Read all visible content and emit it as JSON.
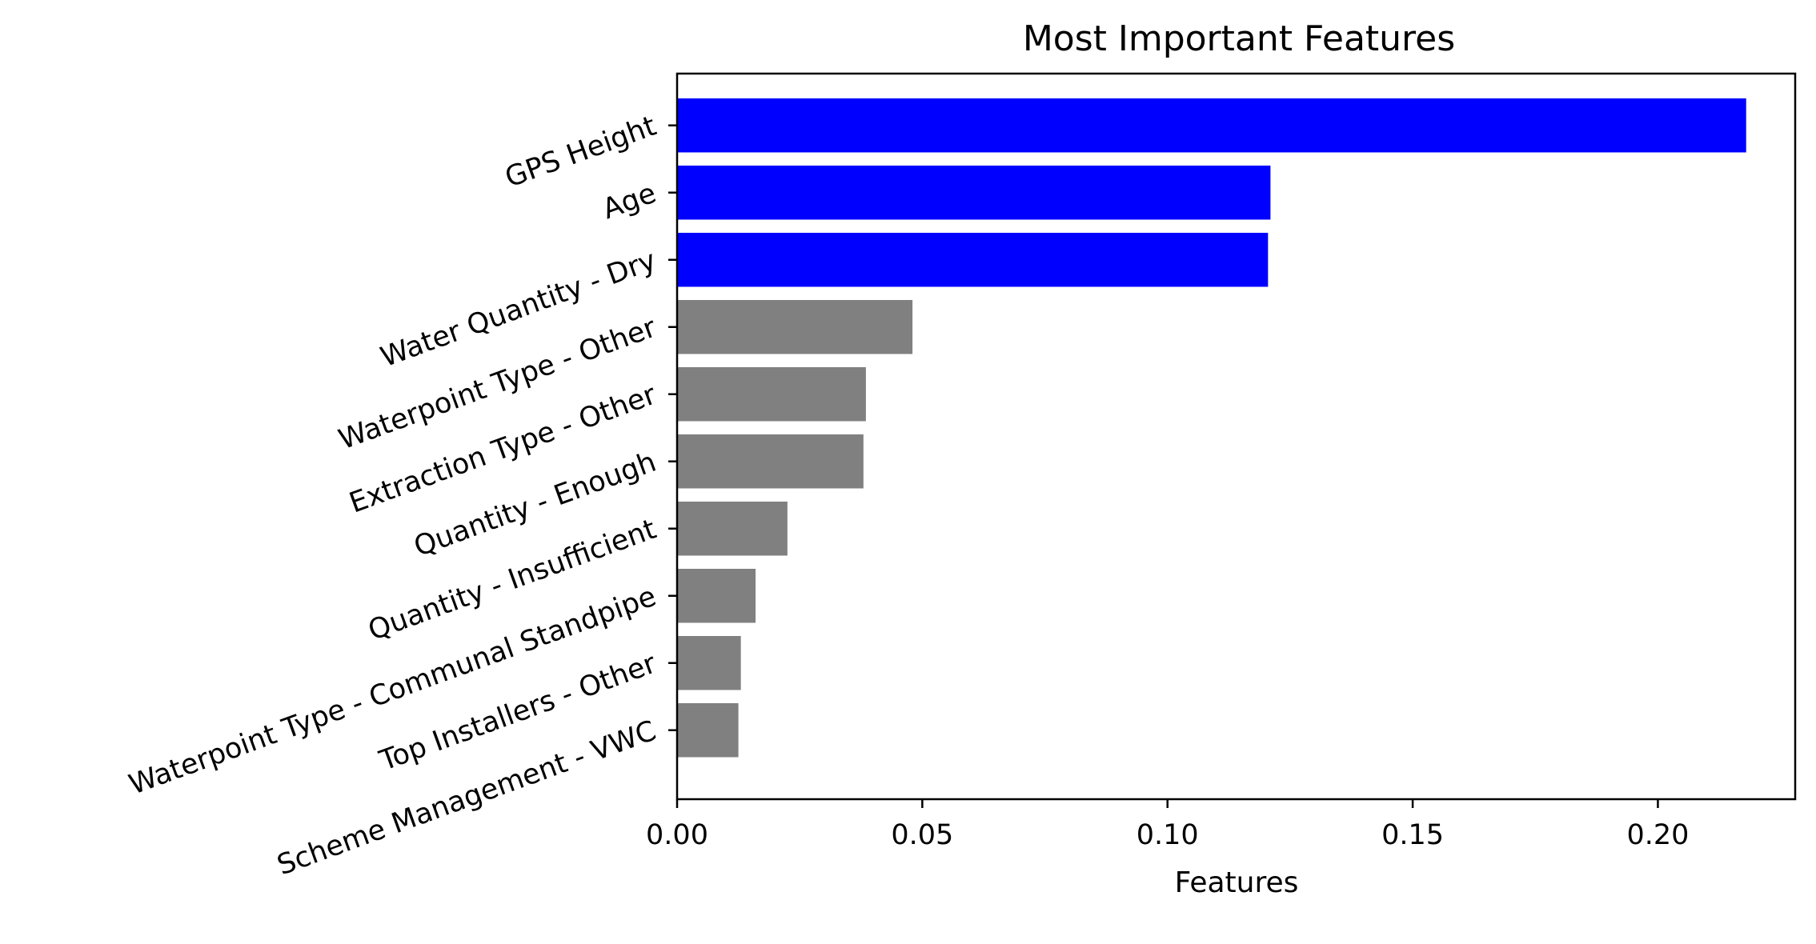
{
  "chart_data": {
    "type": "bar",
    "orientation": "horizontal",
    "title": "Most Important Features",
    "xlabel": "Features",
    "ylabel": "",
    "xlim": [
      0,
      0.228
    ],
    "xticks": [
      0.0,
      0.05,
      0.1,
      0.15,
      0.2
    ],
    "xtick_labels": [
      "0.00",
      "0.05",
      "0.10",
      "0.15",
      "0.20"
    ],
    "grid": false,
    "legend": "none",
    "categories": [
      "GPS Height",
      "Age",
      "Water Quantity - Dry",
      "Waterpoint Type - Other",
      "Extraction Type - Other",
      "Quantity - Enough",
      "Quantity - Insufficient",
      "Waterpoint Type - Communal Standpipe",
      "Top Installers - Other",
      "Scheme Management - VWC"
    ],
    "values": [
      0.218,
      0.121,
      0.1205,
      0.048,
      0.0385,
      0.038,
      0.0225,
      0.016,
      0.013,
      0.0125
    ],
    "colors": [
      "#0000ff",
      "#0000ff",
      "#0000ff",
      "#808080",
      "#808080",
      "#808080",
      "#808080",
      "#808080",
      "#808080",
      "#808080"
    ]
  }
}
